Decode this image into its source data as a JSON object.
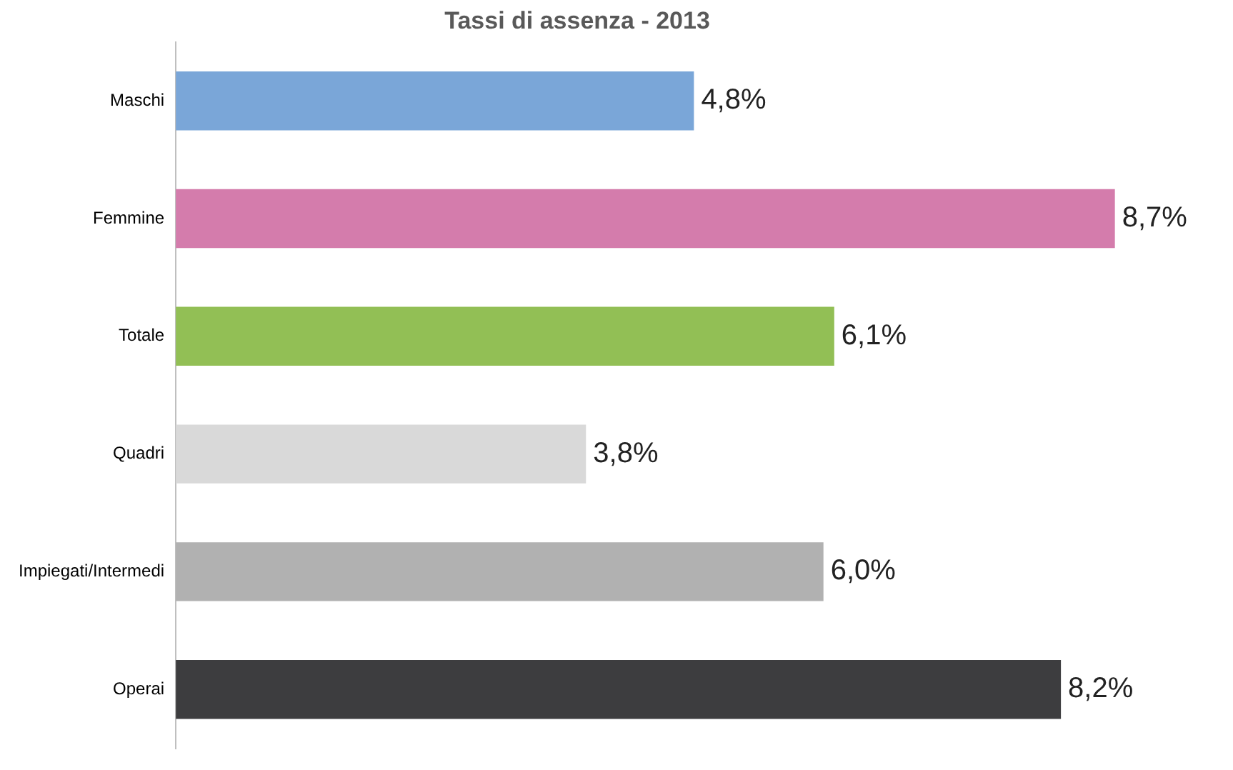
{
  "chart_data": {
    "type": "bar",
    "orientation": "horizontal",
    "title": "Tassi di assenza - 2013",
    "categories": [
      "Maschi",
      "Femmine",
      "Totale",
      "Quadri",
      "Impiegati/Intermedi",
      "Operai"
    ],
    "values": [
      4.8,
      8.7,
      6.1,
      3.8,
      6.0,
      8.2
    ],
    "value_labels": [
      "4,8%",
      "8,7%",
      "6,1%",
      "3,8%",
      "6,0%",
      "8,2%"
    ],
    "colors": [
      "#7aa6d8",
      "#d47cac",
      "#92bf55",
      "#d9d9d9",
      "#b1b1b1",
      "#3d3d3f"
    ],
    "grid": false,
    "legend": false,
    "tick_labels": "y"
  }
}
